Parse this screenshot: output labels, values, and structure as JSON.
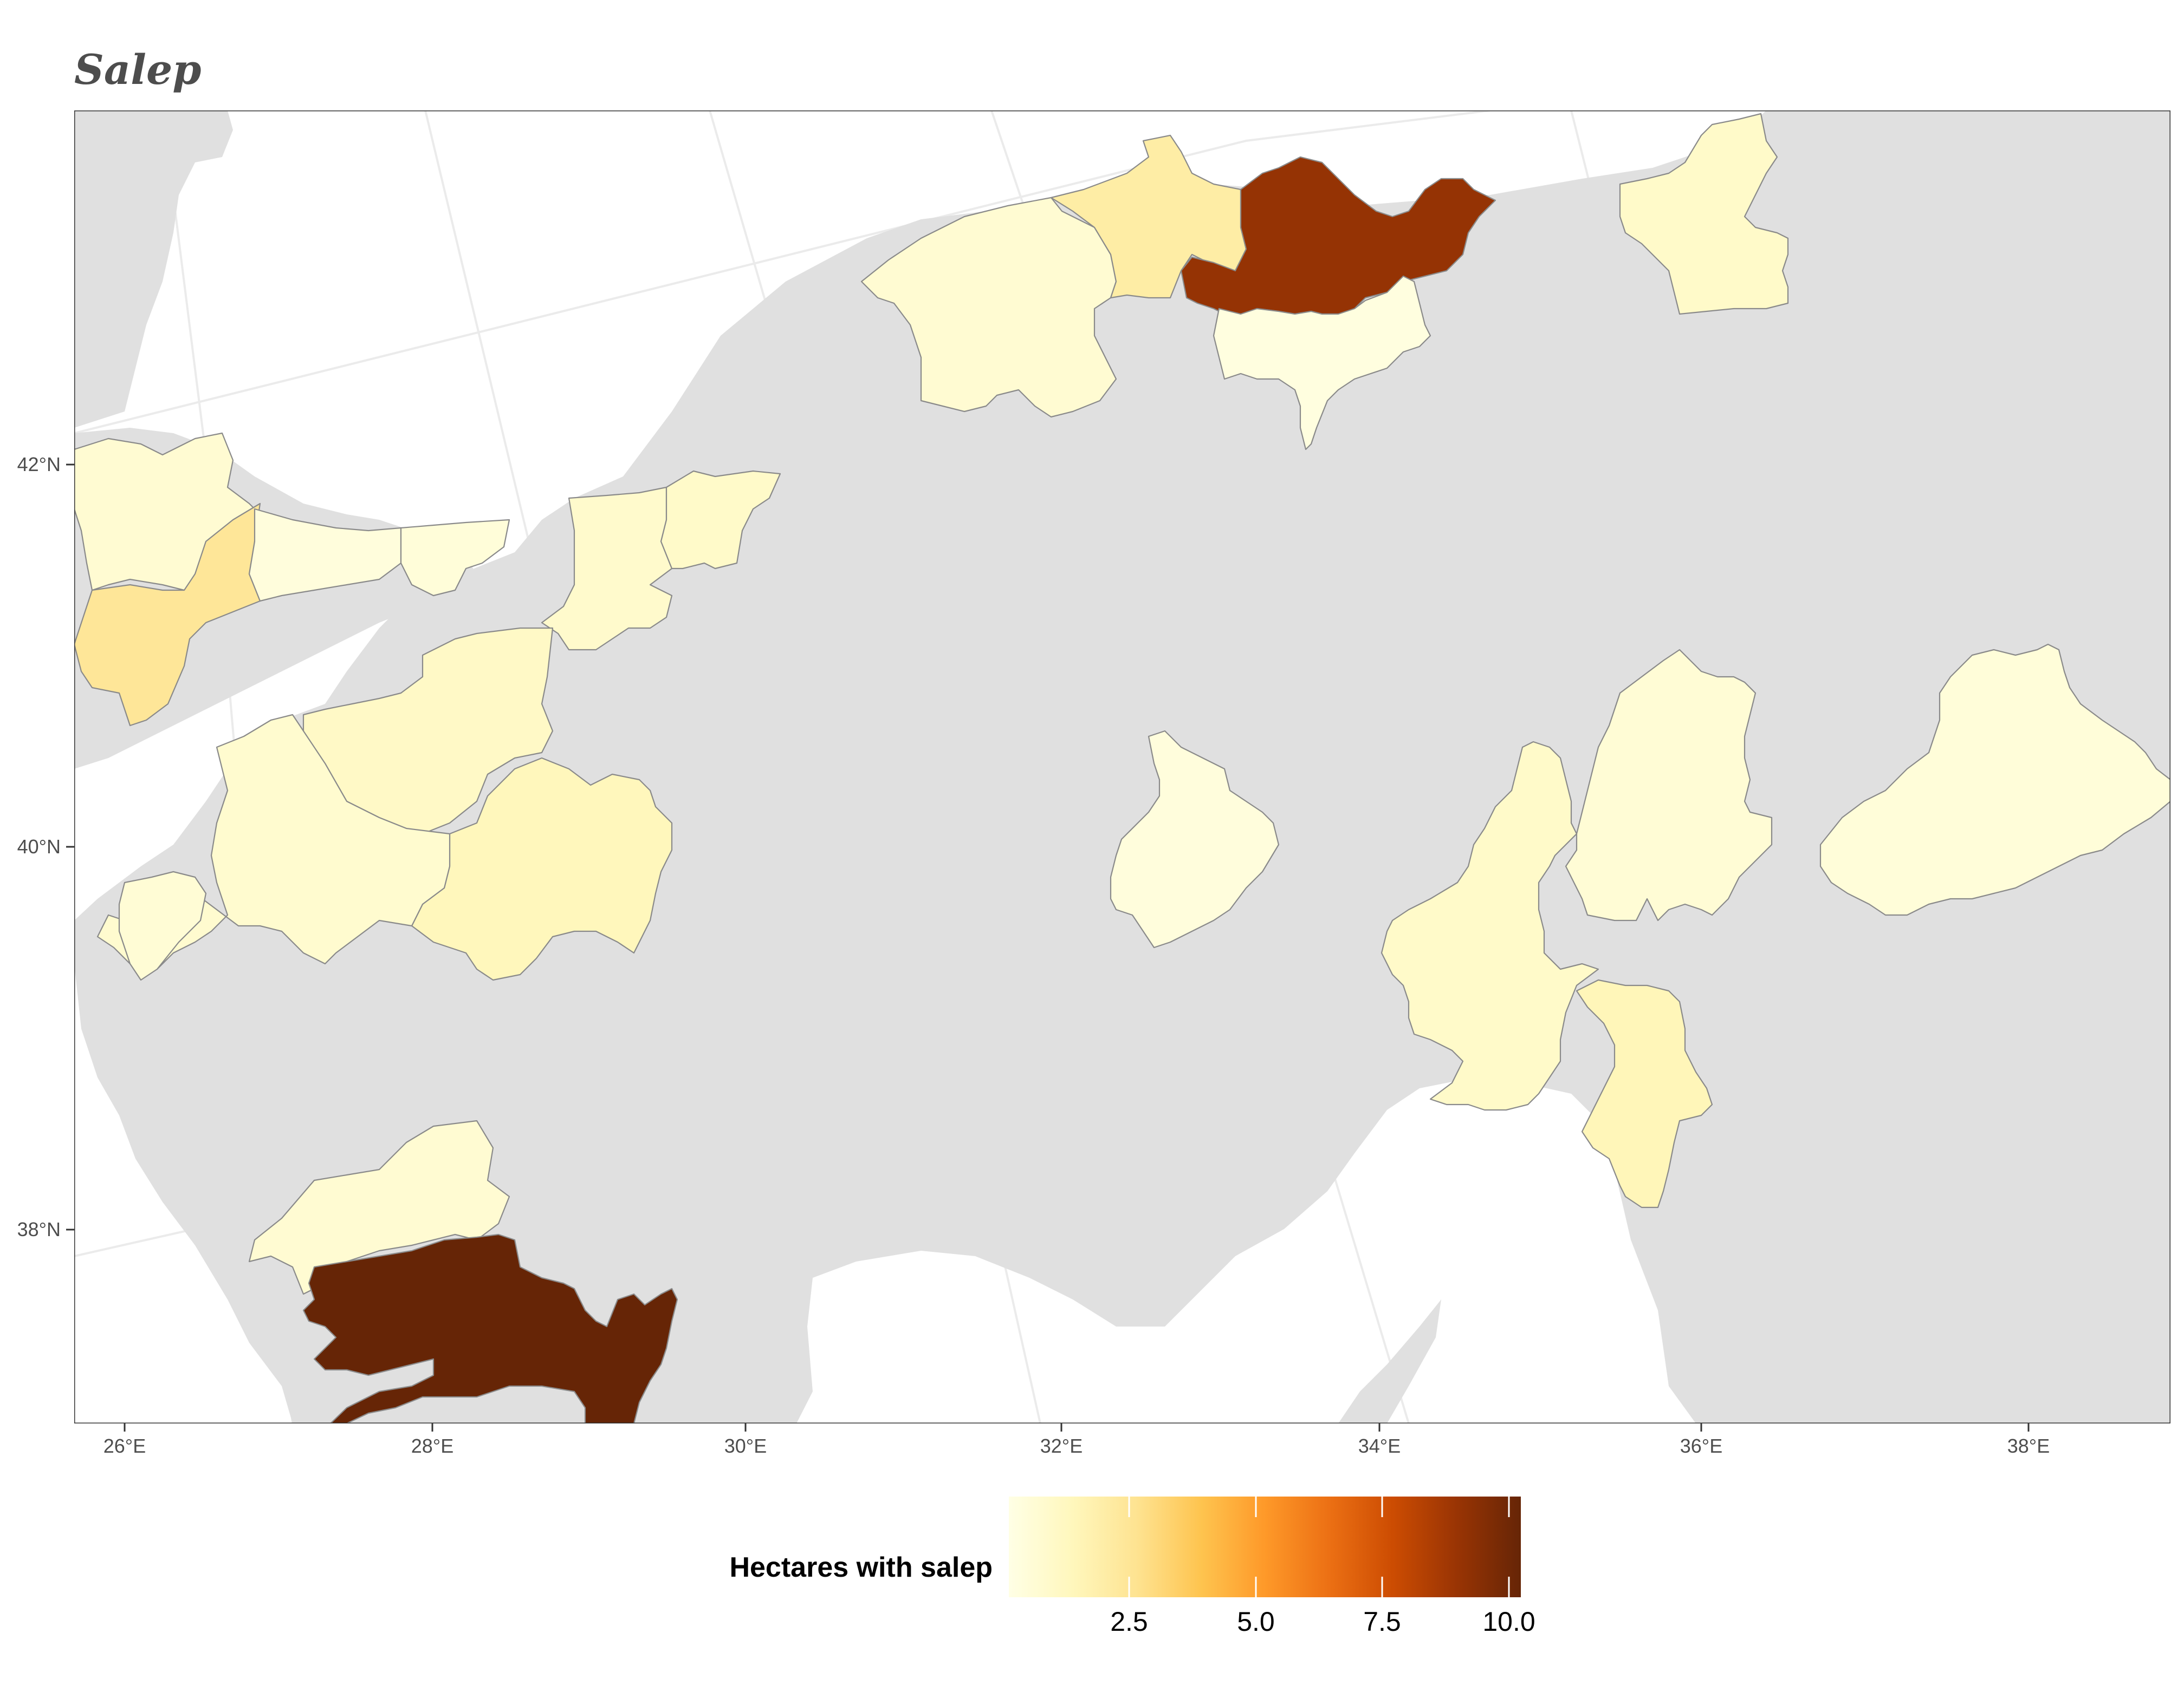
{
  "map": {
    "title": "Salep",
    "axes": {
      "x_ticks": [
        "26°E",
        "28°E",
        "30°E",
        "32°E",
        "34°E",
        "36°E",
        "38°E"
      ],
      "y_ticks": [
        "42°N",
        "40°N",
        "38°N"
      ]
    },
    "legend": {
      "title": "Hectares with salep",
      "labels": [
        "2.5",
        "5.0",
        "7.5",
        "10.0"
      ],
      "colors": [
        "#ffffe5",
        "#fff7bc",
        "#fee391",
        "#fec44f",
        "#fe9929",
        "#ec7014",
        "#cc4c02",
        "#993404",
        "#662506"
      ]
    },
    "colors": {
      "background": "#ffffff",
      "land": "#e0e0e0",
      "border": "#8a8a8a",
      "graticule": "#ebebeb"
    },
    "regions": [
      {
        "id": "istanbul-west",
        "value": 0.6
      },
      {
        "id": "edirne",
        "value": 0.3
      },
      {
        "id": "tekirdag",
        "value": 2.4
      },
      {
        "id": "istanbul-europe",
        "value": 0.3
      },
      {
        "id": "istanbul-asia",
        "value": 0.4
      },
      {
        "id": "kocaeli",
        "value": 0.8
      },
      {
        "id": "sakarya",
        "value": 0.9
      },
      {
        "id": "bursa",
        "value": 1.0
      },
      {
        "id": "balikesir",
        "value": 0.7
      },
      {
        "id": "kutahya",
        "value": 1.3
      },
      {
        "id": "canakkale",
        "value": 0.5
      },
      {
        "id": "izmir",
        "value": 0.6
      },
      {
        "id": "mugla",
        "value": 10.5
      },
      {
        "id": "bartin-zonguldak",
        "value": 0.6
      },
      {
        "id": "karabuk",
        "value": 2.0
      },
      {
        "id": "kastamonu",
        "value": 9.3
      },
      {
        "id": "cankiri",
        "value": 0.2
      },
      {
        "id": "samsun",
        "value": 0.9
      },
      {
        "id": "kirikkale",
        "value": 0.3
      },
      {
        "id": "kayseri",
        "value": 0.9
      },
      {
        "id": "sivas",
        "value": 0.5
      },
      {
        "id": "malatya",
        "value": 0.4
      },
      {
        "id": "kahramanmaras",
        "value": 1.4
      }
    ]
  }
}
